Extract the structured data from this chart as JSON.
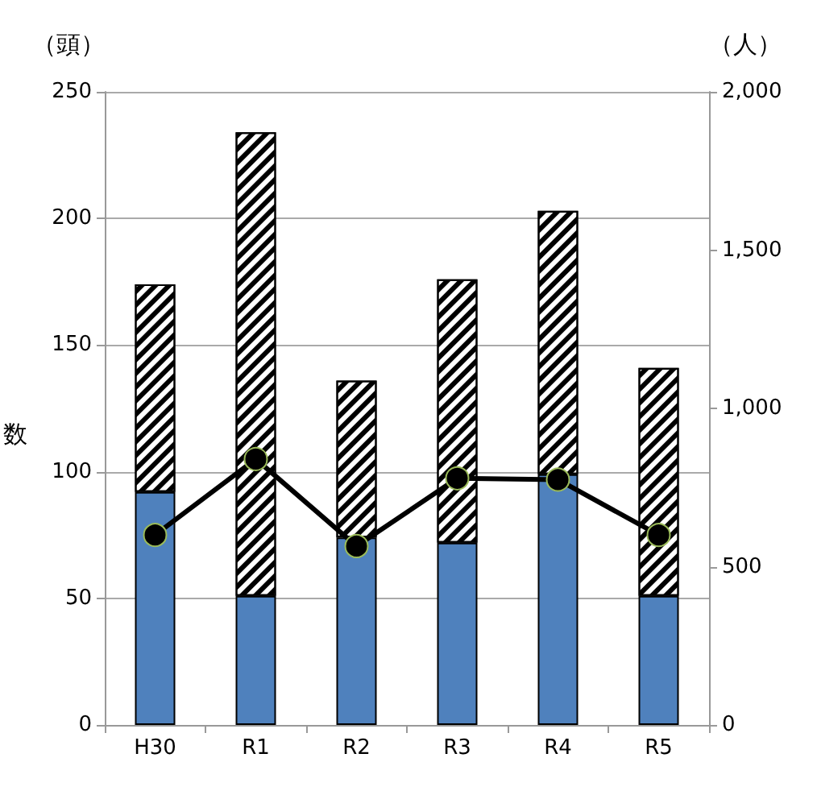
{
  "chart_data": {
    "type": "bar",
    "ylabel": "（頭）",
    "y2label": "（人）",
    "annotations": [
      "数"
    ],
    "categories": [
      "H30",
      "R1",
      "R2",
      "R3",
      "R4",
      "R5"
    ],
    "stacked": true,
    "series": [
      {
        "color": "#4f81bd",
        "values": [
          92,
          51,
          74,
          72,
          99,
          51
        ]
      },
      {
        "color": "#ffffff",
        "values": [
          82,
          183,
          62,
          104,
          104,
          90
        ]
      },
      {
        "type": "line",
        "axis": "y2",
        "color": "#000000",
        "values": [
          600,
          840,
          565,
          779,
          775,
          600
        ]
      }
    ],
    "ylim": [
      0,
      250
    ],
    "yticks": [
      0,
      50,
      100,
      150,
      200,
      250
    ],
    "y2lim": [
      0,
      2000
    ],
    "y2ticks": [
      {
        "value": 0,
        "label": "0"
      },
      {
        "value": 500,
        "label": "500"
      },
      {
        "value": 1000,
        "label": "1,000"
      },
      {
        "value": 1500,
        "label": "1,500"
      },
      {
        "value": 2000,
        "label": "2,000"
      }
    ],
    "grid": "y",
    "marker": "circle",
    "line_style": "solid"
  }
}
